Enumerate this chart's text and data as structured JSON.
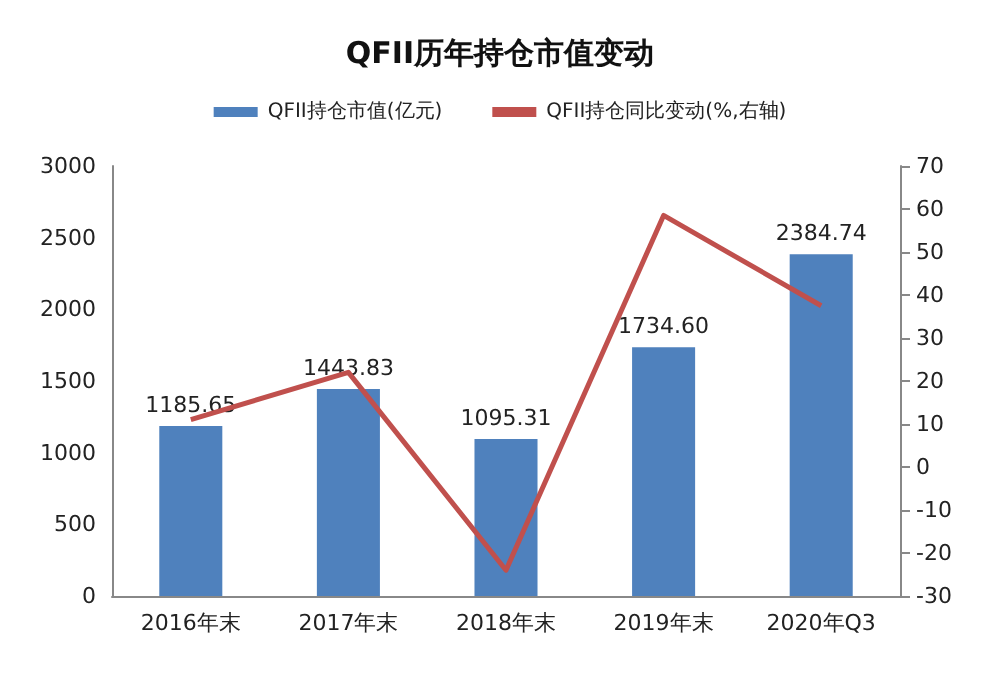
{
  "chart_data": {
    "type": "bar",
    "title": "QFII历年持仓市值变动",
    "categories": [
      "2016年末",
      "2017年末",
      "2018年末",
      "2019年末",
      "2020年Q3"
    ],
    "series": [
      {
        "name": "QFII持仓市值(亿元)",
        "color": "#4f81bd",
        "values": [
          1185.65,
          1443.83,
          1095.31,
          1734.6,
          2384.74
        ],
        "value_labels": [
          "1185.65",
          "1443.83",
          "1095.31",
          "1734.60",
          "2384.74"
        ]
      },
      {
        "name": "QFII持仓同比变动(%,右轴)",
        "type": "line",
        "axis": "y2",
        "color": "#c0504d",
        "values": [
          11,
          22,
          -24,
          58.5,
          37.5
        ]
      }
    ],
    "ylim": [
      0,
      3000
    ],
    "yticks": [
      0,
      500,
      1000,
      1500,
      2000,
      2500,
      3000
    ],
    "y2lim": [
      -30,
      70
    ],
    "y2ticks": [
      -30,
      -20,
      -10,
      0,
      10,
      20,
      30,
      40,
      50,
      60,
      70
    ],
    "legend": "top",
    "grid": false,
    "marker": "none"
  }
}
